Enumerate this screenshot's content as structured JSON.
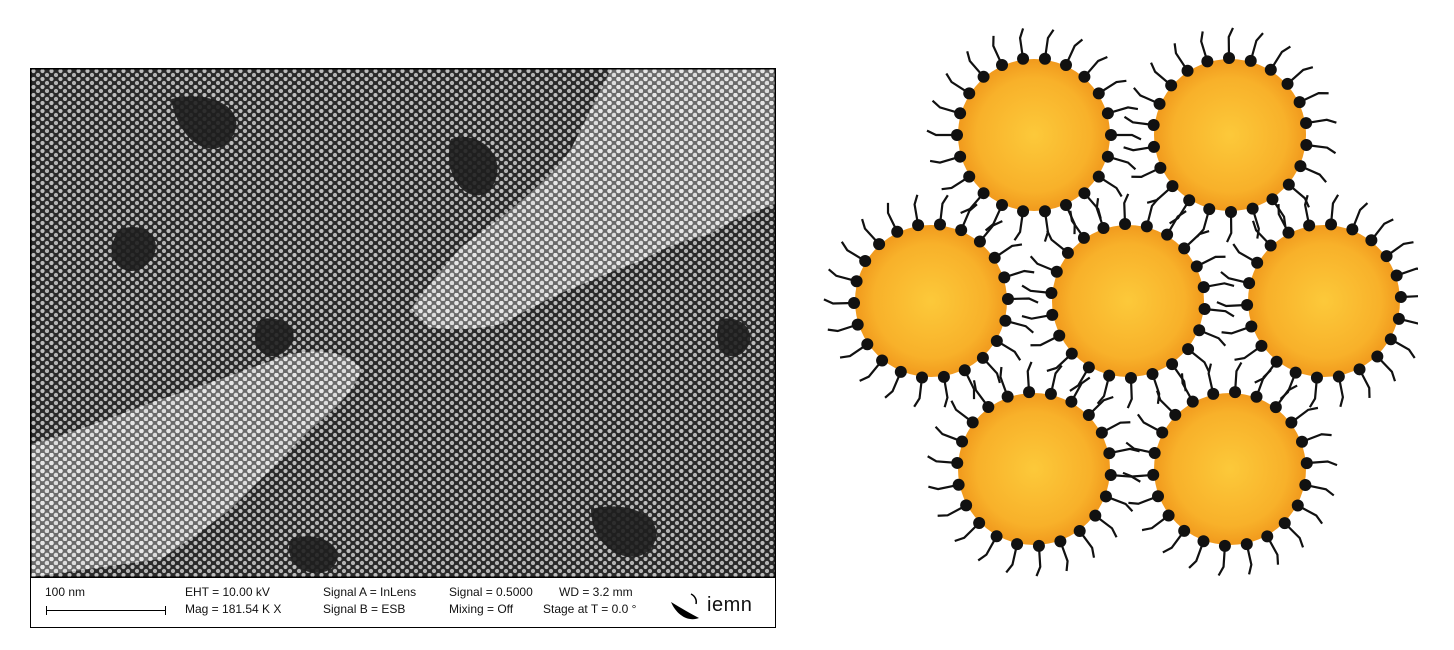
{
  "sem": {
    "scale_label": "100 nm",
    "eht": "EHT = 10.00 kV",
    "mag": "Mag = 181.54 K X",
    "signal_a": "Signal A = InLens",
    "signal_b": "Signal B = ESB",
    "signal": "Signal = 0.5000",
    "mixing": "Mixing = Off",
    "wd": "WD =  3.2 mm",
    "stage": "Stage at T =   0.0 °",
    "logo": "iemn"
  },
  "colors": {
    "particle_core": "#fbbf2e",
    "particle_edge": "#f39a1c",
    "ligand": "#111111",
    "sem_dark": "#2c2c2c",
    "sem_dot": "#cfcfcf"
  },
  "diagram": {
    "particle_count": 7
  }
}
